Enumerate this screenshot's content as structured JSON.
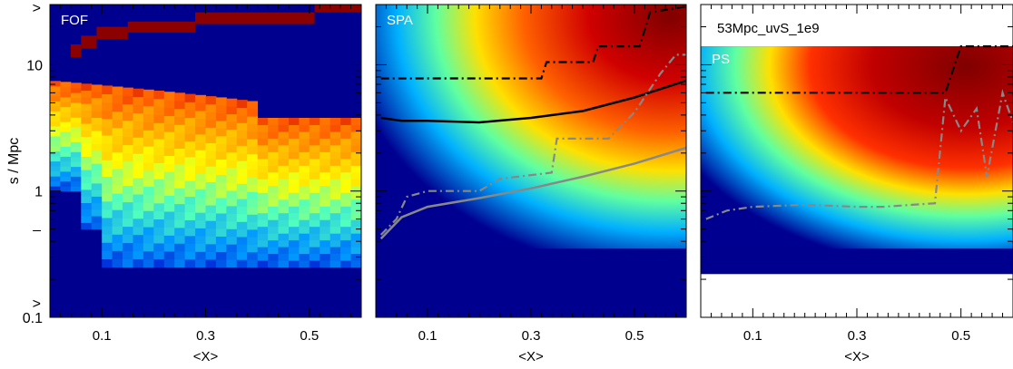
{
  "chart_data": {
    "type": "heatmap",
    "ylabel": "s / Mpc",
    "y_scale": "log",
    "ylim": [
      0.1,
      30
    ],
    "y_ticks": [
      {
        "value": 0.1,
        "label": "0.1"
      },
      {
        "value": 1,
        "label": "1"
      },
      {
        "value": 10,
        "label": "10"
      }
    ],
    "y_edge_marks": [
      {
        "value": 0.5,
        "label": "–"
      },
      {
        "value": 0.13,
        "label": ">"
      },
      {
        "value": 30,
        "label": ">"
      }
    ],
    "panels": [
      {
        "label": "FOF",
        "xlabel": "<X>",
        "xlim": [
          0,
          0.6
        ],
        "x_ticks": [
          {
            "value": 0.1,
            "label": "0.1"
          },
          {
            "value": 0.3,
            "label": "0.3"
          },
          {
            "value": 0.5,
            "label": "0.5"
          }
        ],
        "colormap": "jet",
        "ridge": [
          [
            0.01,
            5.0
          ],
          [
            0.1,
            4.4
          ],
          [
            0.2,
            3.9
          ],
          [
            0.3,
            3.3
          ],
          [
            0.4,
            2.6
          ],
          [
            0.5,
            2.2
          ],
          [
            0.6,
            2.0
          ]
        ],
        "dark_cells": [
          {
            "x0": 0.04,
            "x1": 0.06,
            "y0": 11.5,
            "y1": 14.5
          },
          {
            "x0": 0.06,
            "x1": 0.09,
            "y0": 13.5,
            "y1": 17
          },
          {
            "x0": 0.09,
            "x1": 0.15,
            "y0": 16,
            "y1": 20
          },
          {
            "x0": 0.15,
            "x1": 0.28,
            "y0": 18,
            "y1": 22
          },
          {
            "x0": 0.28,
            "x1": 0.51,
            "y0": 21,
            "y1": 26
          },
          {
            "x0": 0.51,
            "x1": 0.6,
            "y0": 26,
            "y1": 30
          }
        ],
        "lines": []
      },
      {
        "label": "SPA",
        "xlabel": "<X>",
        "xlim": [
          0,
          0.6
        ],
        "x_ticks": [
          {
            "value": 0.1,
            "label": "0.1"
          },
          {
            "value": 0.3,
            "label": "0.3"
          },
          {
            "value": 0.5,
            "label": "0.5"
          }
        ],
        "colormap": "jet",
        "lines": [
          {
            "color": "#000000",
            "style": "dashdot",
            "points": [
              [
                0.01,
                7.8
              ],
              [
                0.32,
                7.8
              ],
              [
                0.33,
                10.5
              ],
              [
                0.42,
                10.5
              ],
              [
                0.43,
                14
              ],
              [
                0.51,
                14
              ],
              [
                0.52,
                19
              ],
              [
                0.53,
                26
              ],
              [
                0.6,
                29
              ]
            ]
          },
          {
            "color": "#000000",
            "style": "solid",
            "points": [
              [
                0.01,
                3.8
              ],
              [
                0.05,
                3.6
              ],
              [
                0.1,
                3.6
              ],
              [
                0.2,
                3.5
              ],
              [
                0.3,
                3.8
              ],
              [
                0.4,
                4.3
              ],
              [
                0.5,
                5.5
              ],
              [
                0.6,
                7.5
              ]
            ]
          },
          {
            "color": "#888888",
            "style": "dashdot",
            "points": [
              [
                0.01,
                0.45
              ],
              [
                0.04,
                0.6
              ],
              [
                0.06,
                0.9
              ],
              [
                0.1,
                1.0
              ],
              [
                0.2,
                1.0
              ],
              [
                0.24,
                1.25
              ],
              [
                0.34,
                1.4
              ],
              [
                0.35,
                2.6
              ],
              [
                0.45,
                2.6
              ],
              [
                0.5,
                4.2
              ],
              [
                0.55,
                8.5
              ],
              [
                0.58,
                12
              ],
              [
                0.6,
                12
              ]
            ]
          },
          {
            "color": "#888888",
            "style": "solid",
            "points": [
              [
                0.01,
                0.42
              ],
              [
                0.05,
                0.62
              ],
              [
                0.1,
                0.75
              ],
              [
                0.2,
                0.88
              ],
              [
                0.3,
                1.05
              ],
              [
                0.4,
                1.3
              ],
              [
                0.5,
                1.65
              ],
              [
                0.6,
                2.2
              ]
            ]
          }
        ]
      },
      {
        "label": "PS",
        "title": "53Mpc_uvS_1e9",
        "xlabel": "<X>",
        "xlim": [
          0,
          0.6
        ],
        "x_ticks": [
          {
            "value": 0.1,
            "label": "0.1"
          },
          {
            "value": 0.3,
            "label": "0.3"
          },
          {
            "value": 0.5,
            "label": "0.5"
          }
        ],
        "colormap": "jet",
        "lines": [
          {
            "color": "#000000",
            "style": "dashdot",
            "points": [
              [
                0.01,
                6.0
              ],
              [
                0.47,
                6.0
              ],
              [
                0.5,
                14
              ],
              [
                0.6,
                14
              ]
            ]
          },
          {
            "color": "#888888",
            "style": "dashdot",
            "points": [
              [
                0.01,
                0.6
              ],
              [
                0.05,
                0.7
              ],
              [
                0.1,
                0.75
              ],
              [
                0.2,
                0.78
              ],
              [
                0.3,
                0.75
              ],
              [
                0.35,
                0.75
              ],
              [
                0.45,
                0.8
              ],
              [
                0.47,
                5.5
              ],
              [
                0.5,
                3.0
              ],
              [
                0.53,
                4.5
              ],
              [
                0.55,
                1.3
              ],
              [
                0.58,
                6.0
              ],
              [
                0.6,
                3.5
              ]
            ]
          }
        ]
      }
    ]
  }
}
